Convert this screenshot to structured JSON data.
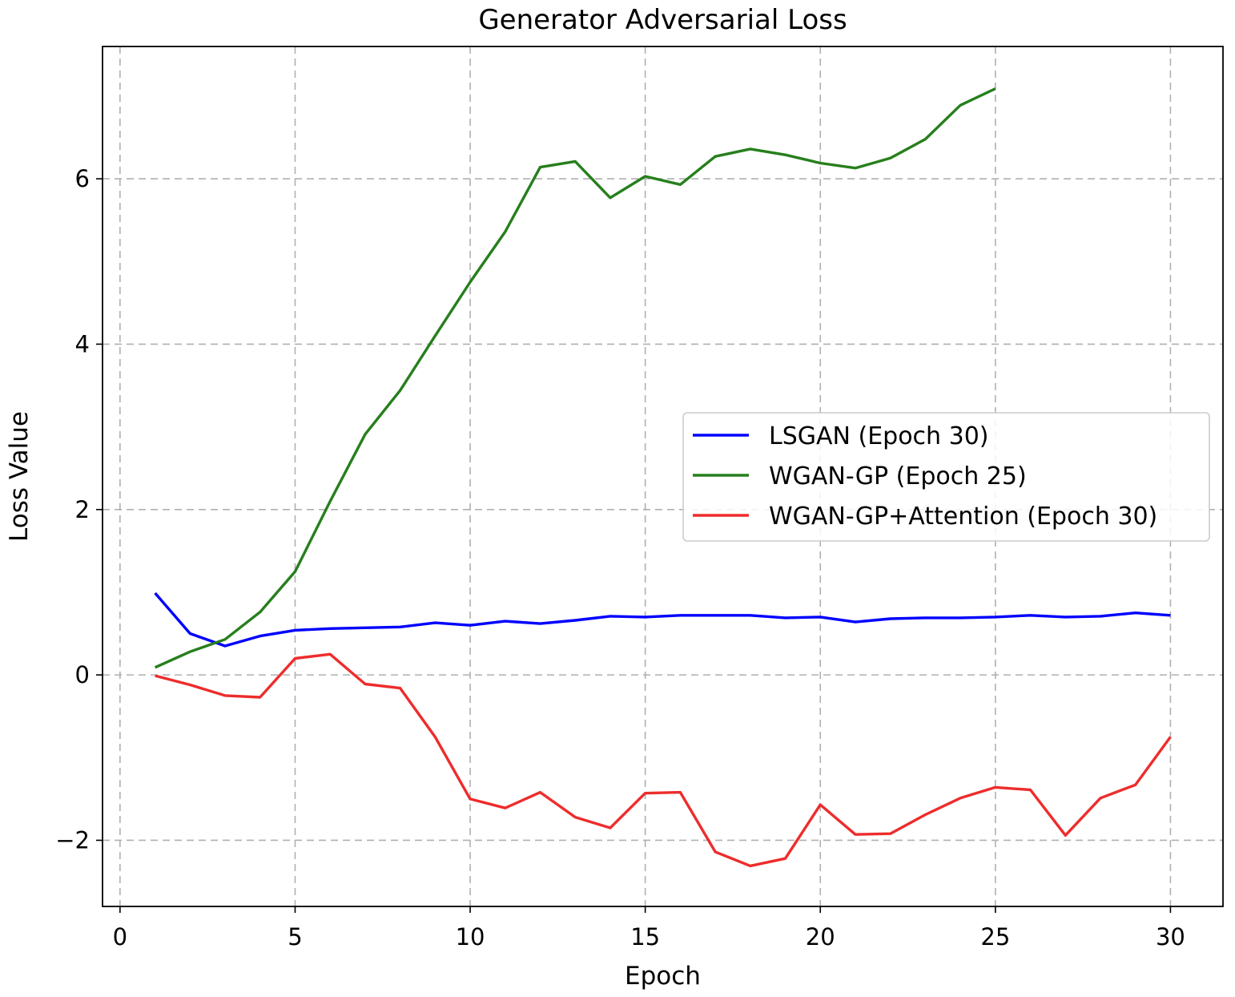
{
  "chart_data": {
    "type": "line",
    "title": "Generator Adversarial Loss",
    "xlabel": "Epoch",
    "ylabel": "Loss Value",
    "xlim": [
      -0.5,
      31.5
    ],
    "ylim": [
      -2.8,
      7.6
    ],
    "xticks": [
      0,
      5,
      10,
      15,
      20,
      25,
      30
    ],
    "yticks": [
      -2,
      0,
      2,
      4,
      6
    ],
    "xtick_labels": [
      "0",
      "5",
      "10",
      "15",
      "20",
      "25",
      "30"
    ],
    "ytick_labels": [
      "−2",
      "0",
      "2",
      "4",
      "6"
    ],
    "grid": true,
    "legend_position": "center-right",
    "series": [
      {
        "name": "LSGAN (Epoch 30)",
        "color": "#0000ff",
        "x": [
          1,
          2,
          3,
          4,
          5,
          6,
          7,
          8,
          9,
          10,
          11,
          12,
          13,
          14,
          15,
          16,
          17,
          18,
          19,
          20,
          21,
          22,
          23,
          24,
          25,
          26,
          27,
          28,
          29,
          30
        ],
        "y": [
          0.99,
          0.5,
          0.35,
          0.47,
          0.54,
          0.56,
          0.57,
          0.58,
          0.63,
          0.6,
          0.65,
          0.62,
          0.66,
          0.71,
          0.7,
          0.72,
          0.72,
          0.72,
          0.69,
          0.7,
          0.64,
          0.68,
          0.69,
          0.69,
          0.7,
          0.72,
          0.7,
          0.71,
          0.75,
          0.72
        ]
      },
      {
        "name": "WGAN-GP (Epoch 25)",
        "color": "#267f1c",
        "x": [
          1,
          2,
          3,
          4,
          5,
          6,
          7,
          8,
          9,
          10,
          11,
          12,
          13,
          14,
          15,
          16,
          17,
          18,
          19,
          20,
          21,
          22,
          23,
          24,
          25
        ],
        "y": [
          0.09,
          0.28,
          0.43,
          0.76,
          1.25,
          2.1,
          2.91,
          3.44,
          4.1,
          4.75,
          5.36,
          6.14,
          6.21,
          5.77,
          6.03,
          5.93,
          6.27,
          6.36,
          6.29,
          6.19,
          6.13,
          6.25,
          6.48,
          6.89,
          7.09
        ]
      },
      {
        "name": "WGAN-GP+Attention (Epoch 30)",
        "color": "#ee2c2c",
        "x": [
          1,
          2,
          3,
          4,
          5,
          6,
          7,
          8,
          9,
          10,
          11,
          12,
          13,
          14,
          15,
          16,
          17,
          18,
          19,
          20,
          21,
          22,
          23,
          24,
          25,
          26,
          27,
          28,
          29,
          30
        ],
        "y": [
          -0.01,
          -0.12,
          -0.25,
          -0.27,
          0.2,
          0.25,
          -0.11,
          -0.16,
          -0.75,
          -1.5,
          -1.61,
          -1.42,
          -1.72,
          -1.85,
          -1.43,
          -1.42,
          -2.14,
          -2.31,
          -2.22,
          -1.57,
          -1.93,
          -1.92,
          -1.69,
          -1.49,
          -1.36,
          -1.39,
          -1.94,
          -1.49,
          -1.33,
          -0.75
        ]
      }
    ]
  }
}
